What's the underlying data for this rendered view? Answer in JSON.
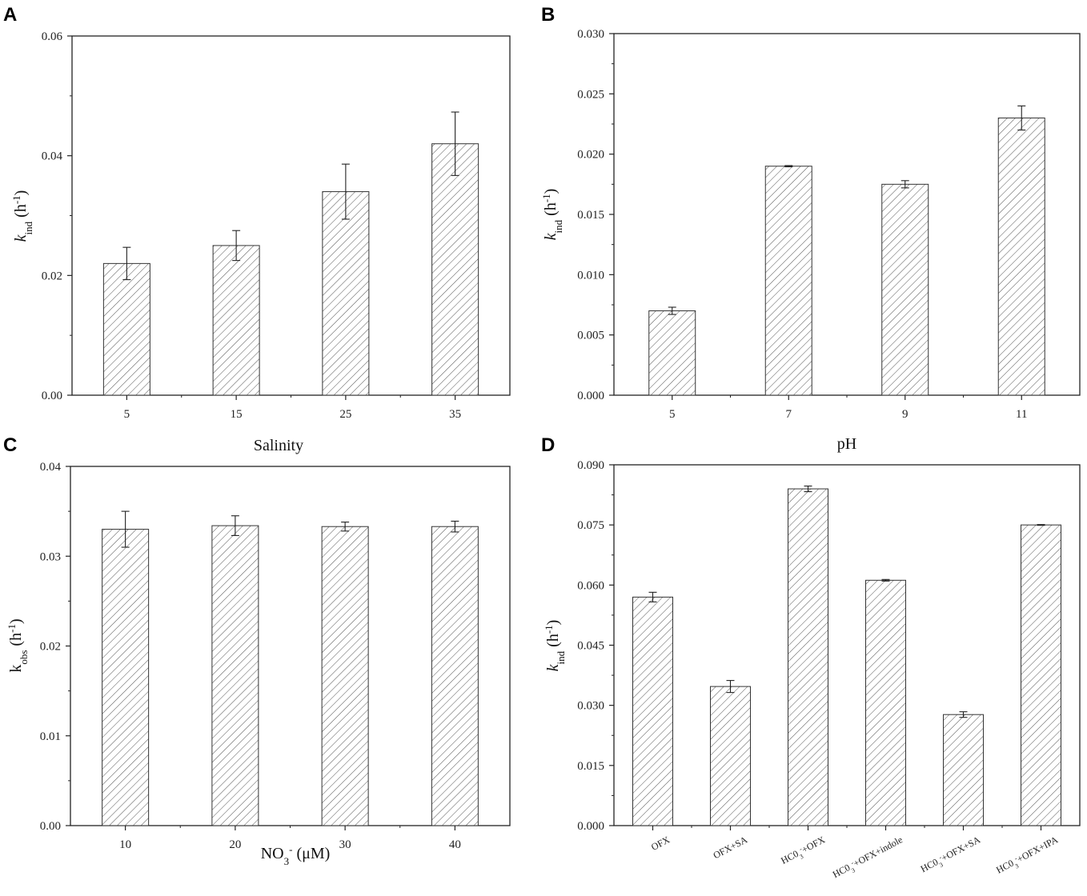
{
  "colors": {
    "axis": "#222222",
    "bar_stroke": "#333333",
    "hatch": "#555555",
    "background": "#ffffff"
  },
  "chart_data": [
    {
      "id": "A",
      "panel_label": "A",
      "type": "bar",
      "title": "",
      "xlabel": "Salinity",
      "ylabel": {
        "main": "k",
        "sub": "ind",
        "unit_open": " (h",
        "sup": "-1",
        "unit_close": ")"
      },
      "categories": [
        "5",
        "15",
        "25",
        "35"
      ],
      "values": [
        0.022,
        0.025,
        0.034,
        0.042
      ],
      "errors": [
        0.0027,
        0.0025,
        0.0046,
        0.0053
      ],
      "ylim": [
        0,
        0.06
      ],
      "ytick_values": [
        0,
        0.02,
        0.04,
        0.06
      ],
      "ytick_labels": [
        "0.00",
        "0.02",
        "0.04",
        "0.06"
      ],
      "grid": false,
      "legend": "none"
    },
    {
      "id": "B",
      "panel_label": "B",
      "type": "bar",
      "title": "",
      "xlabel": "pH",
      "ylabel": {
        "main": "k",
        "sub": "ind",
        "unit_open": " (h",
        "sup": "-1",
        "unit_close": ")"
      },
      "categories": [
        "5",
        "7",
        "9",
        "11"
      ],
      "values": [
        0.007,
        0.019,
        0.0175,
        0.023
      ],
      "errors": [
        0.0003,
        5e-05,
        0.0003,
        0.001
      ],
      "ylim": [
        0,
        0.03
      ],
      "ytick_values": [
        0,
        0.005,
        0.01,
        0.015,
        0.02,
        0.025,
        0.03
      ],
      "ytick_labels": [
        "0.000",
        "0.005",
        "0.010",
        "0.015",
        "0.020",
        "0.025",
        "0.030"
      ],
      "grid": false,
      "legend": "none"
    },
    {
      "id": "C",
      "panel_label": "C",
      "type": "bar",
      "title": "",
      "xlabel": {
        "main": "NO",
        "sub": "3",
        "sup": "-",
        "unit": " (μM)"
      },
      "ylabel": {
        "main": "k",
        "sub": "obs",
        "unit_open": " (h",
        "sup": "-1",
        "unit_close": ")"
      },
      "categories": [
        "10",
        "20",
        "30",
        "40"
      ],
      "values": [
        0.033,
        0.0334,
        0.0333,
        0.0333
      ],
      "errors": [
        0.002,
        0.0011,
        0.0005,
        0.0006
      ],
      "ylim": [
        0,
        0.04
      ],
      "ytick_values": [
        0,
        0.01,
        0.02,
        0.03,
        0.04
      ],
      "ytick_labels": [
        "0.00",
        "0.01",
        "0.02",
        "0.03",
        "0.04"
      ],
      "grid": false,
      "legend": "none"
    },
    {
      "id": "D",
      "panel_label": "D",
      "type": "bar",
      "title": "",
      "xlabel": "",
      "ylabel": {
        "main": "k",
        "sub": "ind",
        "unit_open": " (h",
        "sup": "-1",
        "unit_close": ")"
      },
      "categories": [
        {
          "pre": "",
          "sub": "",
          "sup": "",
          "post": "OFX"
        },
        {
          "pre": "",
          "sub": "",
          "sup": "",
          "post": "OFX+SA"
        },
        {
          "pre": "HC0",
          "sub": "3",
          "sup": "-",
          "post": "+OFX"
        },
        {
          "pre": "HC0",
          "sub": "3",
          "sup": "-",
          "post": "+OFX+indole"
        },
        {
          "pre": "HC0",
          "sub": "3",
          "sup": "-",
          "post": "+OFX+SA"
        },
        {
          "pre": "HC0",
          "sub": "3",
          "sup": "-",
          "post": "+OFX+IPA"
        }
      ],
      "values": [
        0.057,
        0.0347,
        0.084,
        0.0612,
        0.0277,
        0.075
      ],
      "errors": [
        0.0012,
        0.0015,
        0.0007,
        0.0002,
        0.0007,
        0.0001
      ],
      "ylim": [
        0,
        0.09
      ],
      "ytick_values": [
        0,
        0.015,
        0.03,
        0.045,
        0.06,
        0.075,
        0.09
      ],
      "ytick_labels": [
        "0.000",
        "0.015",
        "0.030",
        "0.045",
        "0.060",
        "0.075",
        "0.090"
      ],
      "grid": false,
      "legend": "none"
    }
  ]
}
